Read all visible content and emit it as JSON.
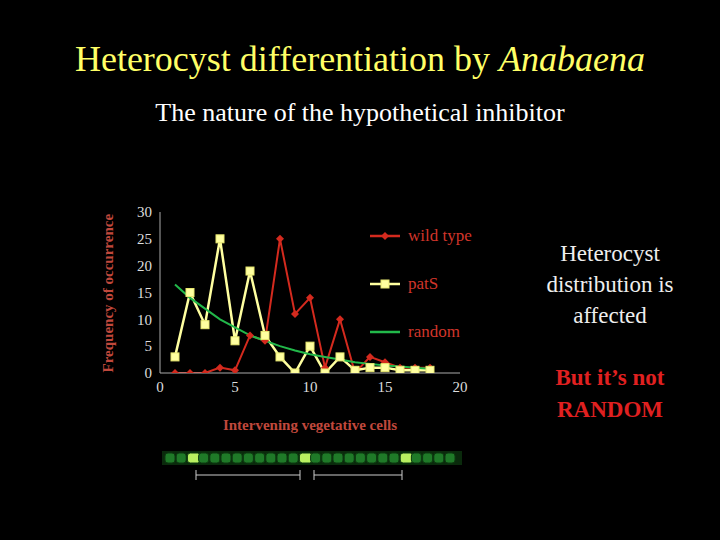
{
  "chart_data": {
    "type": "line",
    "title": "Heterocyst differentiation by Anabaena",
    "subtitle": "The nature of the hypothetical inhibitor",
    "x_label": "Intervening vegetative cells",
    "y_label": "Frequency of occurrence",
    "x": [
      1,
      2,
      3,
      4,
      5,
      6,
      7,
      8,
      9,
      10,
      11,
      12,
      13,
      14,
      15,
      16,
      17,
      18
    ],
    "series": [
      {
        "name": "wild type",
        "color": "#d42a1e",
        "marker": "diamond",
        "values": [
          0,
          0,
          0,
          1,
          0.5,
          7,
          6,
          25,
          11,
          14,
          1,
          10,
          0,
          3,
          2,
          1,
          1,
          1
        ]
      },
      {
        "name": "patS",
        "color": "#ffffa0",
        "marker": "square",
        "values": [
          3,
          15,
          9,
          25,
          6,
          19,
          7,
          3,
          0,
          5,
          0,
          3,
          0.5,
          1,
          1,
          0.5,
          0.5,
          0.5
        ]
      },
      {
        "name": "random",
        "color": "#22b84a",
        "marker": "none",
        "values": [
          16.5,
          14,
          12,
          10,
          8.5,
          7,
          6,
          5,
          4.2,
          3.5,
          3,
          2.5,
          2,
          1.7,
          1.4,
          1.2,
          1,
          0.8
        ]
      }
    ],
    "xlim": [
      0,
      20
    ],
    "xticks": [
      0,
      5,
      10,
      15,
      20
    ],
    "ylim": [
      0,
      30
    ],
    "yticks": [
      0,
      5,
      10,
      15,
      20,
      25,
      30
    ],
    "grid": false,
    "legend": "right",
    "annotations": [
      "Heterocyst distribution is affected",
      "But it’s not RANDOM"
    ]
  }
}
